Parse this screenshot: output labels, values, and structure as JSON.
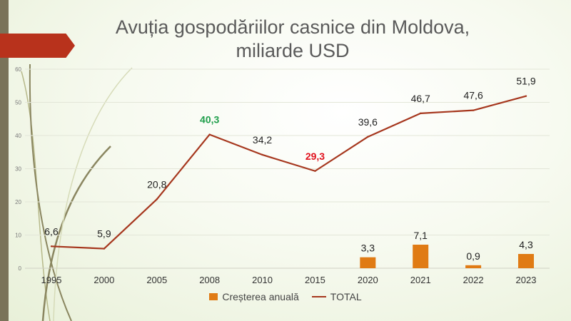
{
  "chart_data": {
    "type": "bar+line",
    "title_line1": "Avuția gospodăriilor casnice din Moldova,",
    "title_line2": "miliarde USD",
    "categories": [
      "1995",
      "2000",
      "2005",
      "2008",
      "2010",
      "2015",
      "2020",
      "2021",
      "2022",
      "2023"
    ],
    "yticks": [
      0,
      10,
      20,
      30,
      40,
      50,
      60
    ],
    "ylim": [
      0,
      60
    ],
    "series": [
      {
        "name": "Creșterea anuală",
        "type": "bar",
        "color": "#e07b14",
        "values": [
          null,
          null,
          null,
          null,
          null,
          null,
          3.3,
          7.1,
          0.9,
          4.3
        ],
        "labels": [
          "",
          "",
          "",
          "",
          "",
          "",
          "3,3",
          "7,1",
          "0,9",
          "4,3"
        ]
      },
      {
        "name": "TOTAL",
        "type": "line",
        "color": "#a6371e",
        "values": [
          6.6,
          5.9,
          20.8,
          40.3,
          34.2,
          29.3,
          39.6,
          46.7,
          47.6,
          51.9
        ],
        "labels": [
          "6,6",
          "5,9",
          "20,8",
          "40,3",
          "34,2",
          "29,3",
          "39,6",
          "46,7",
          "47,6",
          "51,9"
        ],
        "highlight": {
          "max_color": "#1e9e4a",
          "min_color": "#e0101c",
          "max_index": 3,
          "min_index": 5
        }
      }
    ],
    "legend_placement": "bottom",
    "grid": true
  }
}
